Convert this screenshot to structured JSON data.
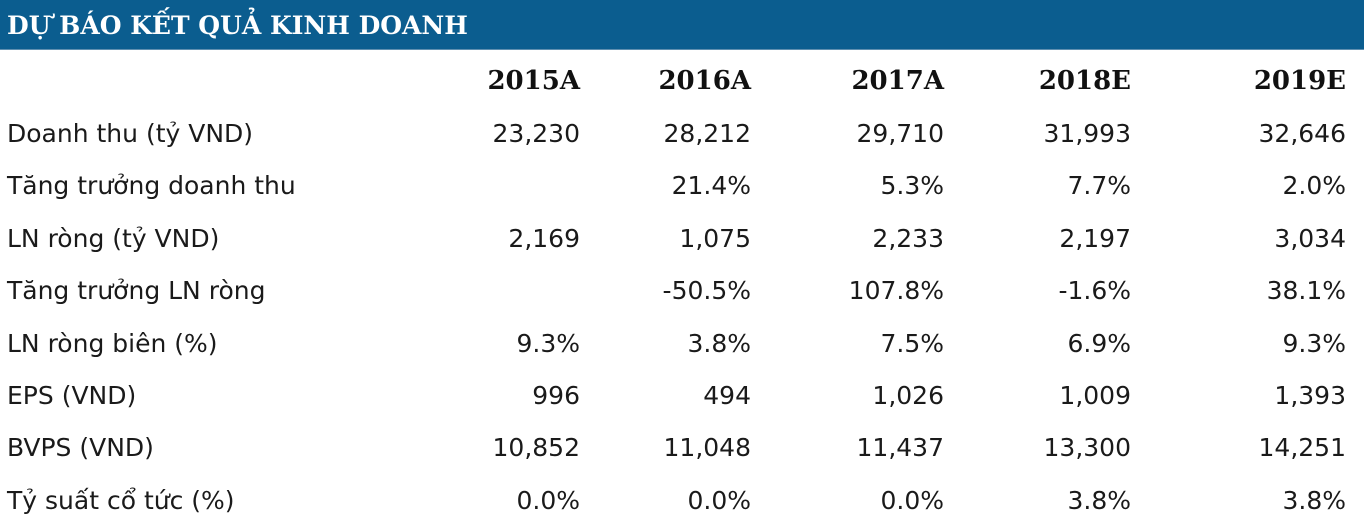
{
  "header": {
    "title": "DỰ BÁO KẾT QUẢ KINH DOANH",
    "background_color": "#0b5d8f",
    "text_color": "#ffffff"
  },
  "table": {
    "columns": [
      "2015A",
      "2016A",
      "2017A",
      "2018E",
      "2019E"
    ],
    "rows": [
      {
        "label": "Doanh thu (tỷ VND)",
        "values": [
          "23,230",
          "28,212",
          "29,710",
          "31,993",
          "32,646"
        ]
      },
      {
        "label": "Tăng trưởng doanh thu",
        "values": [
          "",
          "21.4%",
          "5.3%",
          "7.7%",
          "2.0%"
        ]
      },
      {
        "label": "LN ròng (tỷ VND)",
        "values": [
          "2,169",
          "1,075",
          "2,233",
          "2,197",
          "3,034"
        ]
      },
      {
        "label": "Tăng trưởng LN ròng",
        "values": [
          "",
          "-50.5%",
          "107.8%",
          "-1.6%",
          "38.1%"
        ]
      },
      {
        "label": "LN ròng biên (%)",
        "values": [
          "9.3%",
          "3.8%",
          "7.5%",
          "6.9%",
          "9.3%"
        ]
      },
      {
        "label": "EPS (VND)",
        "values": [
          "996",
          "494",
          "1,026",
          "1,009",
          "1,393"
        ]
      },
      {
        "label": "BVPS (VND)",
        "values": [
          "10,852",
          "11,048",
          "11,437",
          "13,300",
          "14,251"
        ]
      },
      {
        "label": "Tỷ suất cổ tức (%)",
        "values": [
          "0.0%",
          "0.0%",
          "0.0%",
          "3.8%",
          "3.8%"
        ]
      }
    ]
  }
}
